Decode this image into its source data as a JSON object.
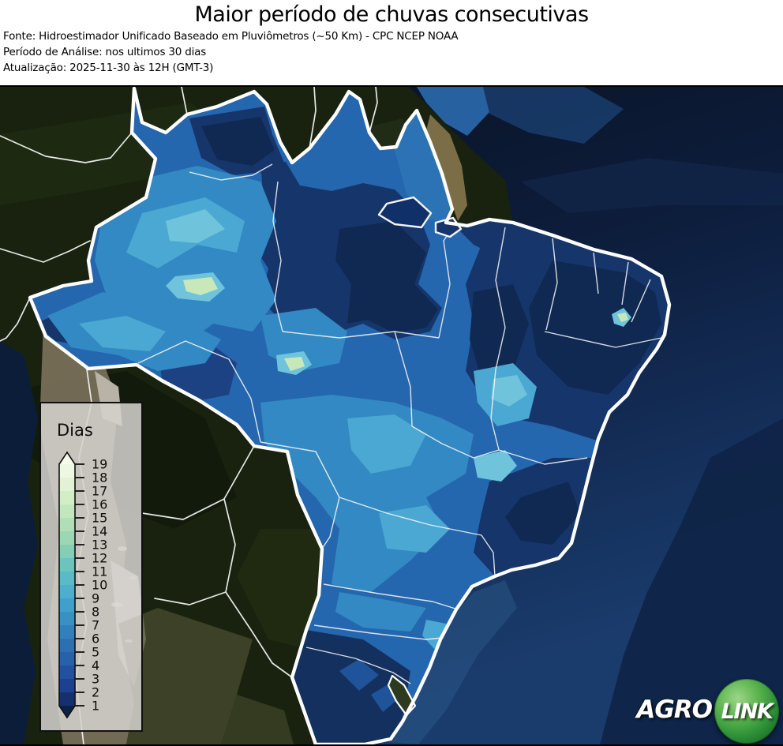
{
  "header": {
    "title": "Maior período de chuvas consecutivas",
    "source": "Fonte: Hidroestimador Unificado Baseado em Pluviômetros (~50 Km) - CPC NCEP NOAA",
    "analysis_period": "Período de Análise: nos ultimos 30 dias",
    "updated": "Atualização: 2025-11-30 às 12H (GMT-3)"
  },
  "legend": {
    "title": "Dias",
    "ticks": [
      19,
      18,
      17,
      16,
      15,
      14,
      13,
      12,
      11,
      10,
      9,
      8,
      7,
      6,
      5,
      4,
      3,
      2,
      1
    ],
    "band_colors_top_to_bottom": [
      "#edf8e2",
      "#e1f3d4",
      "#d2eec7",
      "#c2e7bf",
      "#b0dfb7",
      "#9bd7b3",
      "#83ceb5",
      "#6bc4bd",
      "#5abbc6",
      "#4daecd",
      "#41a0cb",
      "#3990c3",
      "#3280bb",
      "#2c70b3",
      "#2661a9",
      "#22529f",
      "#1c4190",
      "#15306e"
    ],
    "arrow_over_color": "#f6fbec",
    "arrow_under_color": "#0c2148"
  },
  "map": {
    "region": "Brasil",
    "unit": "dias",
    "value_min": 1,
    "value_max": 19,
    "palette_low_to_high": [
      "#0f2952",
      "#16356b",
      "#1c4284",
      "#1f549a",
      "#2467ae",
      "#3389c3",
      "#4aa8d2",
      "#6fc4dc",
      "#9ad8d4",
      "#c9e8ba",
      "#e4f4d2"
    ]
  },
  "logo": {
    "brand_left": "AGRO",
    "brand_right": "LINK",
    "sphere_center_color": "#9cd689",
    "sphere_edge_color": "#145a20"
  }
}
